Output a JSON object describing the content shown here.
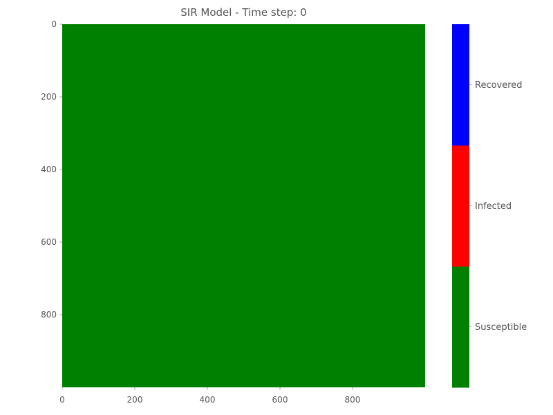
{
  "chart_data": {
    "type": "heatmap",
    "title": "SIR Model - Time step: 0",
    "xlabel": "",
    "ylabel": "",
    "xlim": [
      0,
      1000
    ],
    "ylim": [
      0,
      1000
    ],
    "y_axis_inverted": true,
    "x_ticks": [
      "0",
      "200",
      "400",
      "600",
      "800"
    ],
    "y_ticks": [
      "0",
      "200",
      "400",
      "600",
      "800"
    ],
    "grid_values": "all cells = 0 (Susceptible)",
    "states": [
      {
        "value": 0,
        "name": "Susceptible",
        "color": "#008000"
      },
      {
        "value": 1,
        "name": "Infected",
        "color": "#ff0000"
      },
      {
        "value": 2,
        "name": "Recovered",
        "color": "#0000ff"
      }
    ],
    "fill_state": 0,
    "colorbar_position": "right"
  }
}
